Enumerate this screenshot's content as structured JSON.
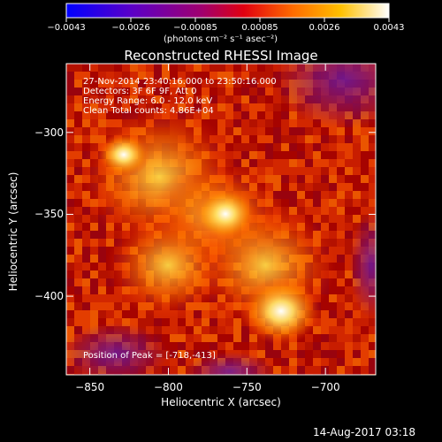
{
  "colorbar": {
    "tick_labels": [
      "-0.0043",
      "-0.0026",
      "-0.00085",
      "0.00085",
      "0.0026",
      "0.0043"
    ],
    "unit_label": "(photons cm⁻² s⁻¹ asec⁻²)",
    "range": [
      -0.0043,
      0.0043
    ]
  },
  "plot": {
    "title": "Reconstructed RHESSI Image",
    "info_lines": [
      "27-Nov-2014 23:40:16.000 to 23:50:16.000",
      "Detectors: 3F 6F 9F, Att 0",
      "Energy Range: 6.0 - 12.0 keV",
      "Clean     Total counts: 4.86E+04"
    ],
    "peak_text": "Position of Peak = [-718,-413]"
  },
  "timestamp": "14-Aug-2017 03:18",
  "colors": {
    "background": "#000000",
    "foreground": "#ffffff"
  },
  "chart_data": {
    "type": "heatmap",
    "title": "Reconstructed RHESSI Image",
    "xlabel": "Heliocentric X (arcsec)",
    "ylabel": "Heliocentric Y (arcsec)",
    "xlim": [
      -865,
      -668
    ],
    "ylim": [
      -448,
      -258
    ],
    "x_ticks": [
      -850,
      -800,
      -750,
      -700
    ],
    "y_ticks": [
      -300,
      -350,
      -400
    ],
    "colormap": "hot",
    "peak": [
      -718,
      -413
    ]
  }
}
